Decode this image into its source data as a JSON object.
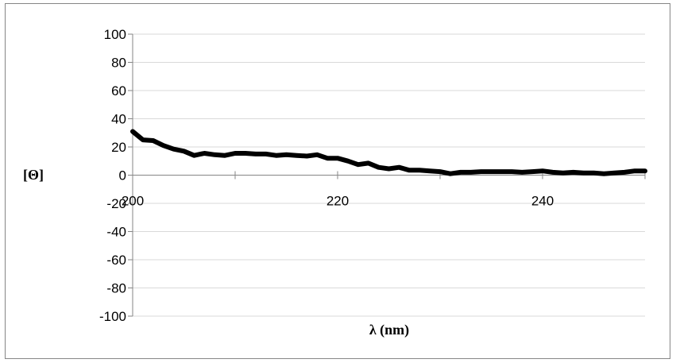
{
  "chart_data": {
    "type": "line",
    "title": "",
    "xlabel": "λ (nm)",
    "ylabel": "[Θ]",
    "xlim": [
      200,
      250
    ],
    "ylim": [
      -100,
      100
    ],
    "x_ticks": [
      200,
      220,
      240
    ],
    "x_tick_labels": [
      "200",
      "220",
      "240"
    ],
    "y_ticks": [
      -100,
      -80,
      -60,
      -40,
      -20,
      0,
      20,
      40,
      60,
      80,
      100
    ],
    "y_tick_labels": [
      "-100",
      "-80",
      "-60",
      "-40",
      "-20",
      "0",
      "20",
      "40",
      "60",
      "80",
      "100"
    ],
    "grid": true,
    "legend": "none",
    "line_color": "#000000",
    "series": [
      {
        "x": [
          200,
          201,
          202,
          203,
          204,
          205,
          206,
          207,
          208,
          209,
          210,
          211,
          212,
          213,
          214,
          215,
          216,
          217,
          218,
          219,
          220,
          221,
          222,
          223,
          224,
          225,
          226,
          227,
          228,
          229,
          230,
          231,
          232,
          233,
          234,
          235,
          236,
          237,
          238,
          239,
          240,
          241,
          242,
          243,
          244,
          245,
          246,
          247,
          248,
          249,
          250
        ],
        "y": [
          31,
          25,
          24.5,
          21,
          18.5,
          17,
          14,
          15.5,
          14.5,
          14,
          15.5,
          15.5,
          15,
          15,
          14,
          14.5,
          14,
          13.5,
          14.5,
          12,
          12,
          10,
          7.5,
          8.5,
          5.5,
          4.5,
          5.5,
          3.5,
          3.5,
          3,
          2.5,
          1,
          2,
          2,
          2.5,
          2.5,
          2.5,
          2.5,
          2,
          2.5,
          3,
          2,
          1.5,
          2,
          1.5,
          1.5,
          1,
          1.5,
          2,
          3,
          3
        ]
      }
    ]
  }
}
